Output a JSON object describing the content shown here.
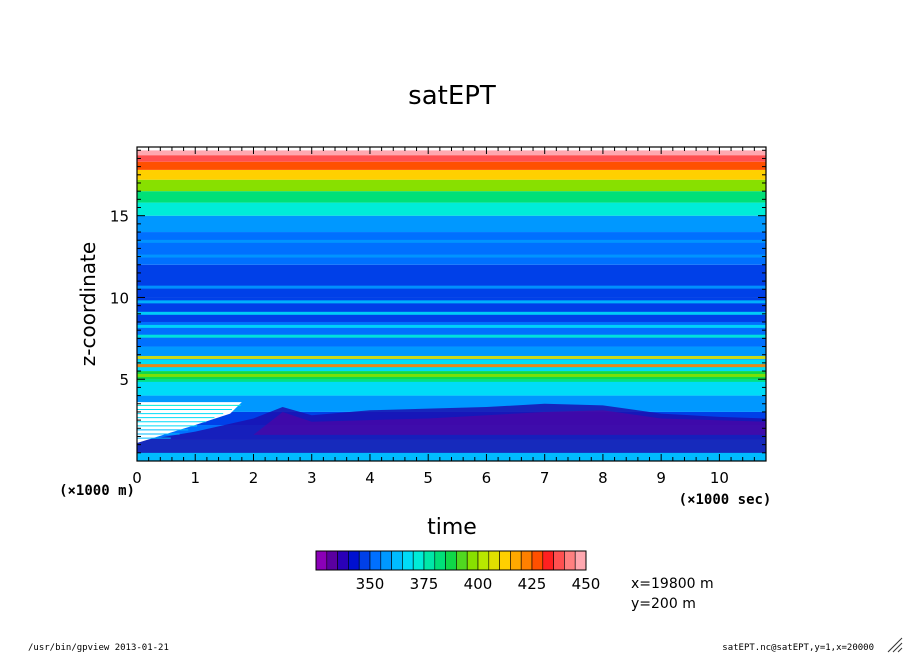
{
  "chart_data": {
    "type": "heatmap",
    "title": "satEPT",
    "xlabel": "time",
    "ylabel": "z-coordinate",
    "x_scale_note": "(×1000 sec)",
    "y_scale_note": "(×1000 m)",
    "xlim": [
      0,
      10.8
    ],
    "ylim": [
      0,
      19.2
    ],
    "x_ticks": [
      0,
      1,
      2,
      3,
      4,
      5,
      6,
      7,
      8,
      9,
      10
    ],
    "x_tick_labels": [
      "0",
      "1",
      "2",
      "3",
      "4",
      "5",
      "6",
      "7",
      "8",
      "9",
      "10"
    ],
    "y_ticks": [
      5,
      10,
      15
    ],
    "y_tick_labels": [
      "5",
      "10",
      "15"
    ],
    "colorbar": {
      "levels_min": 330,
      "levels_step": 5,
      "colors": [
        "#8b00b8",
        "#5a00a0",
        "#2a00b8",
        "#0010d0",
        "#0040e8",
        "#0070ff",
        "#0098ff",
        "#00bcff",
        "#00dcf8",
        "#00ecd8",
        "#00e8a8",
        "#00e078",
        "#10d848",
        "#50d820",
        "#88e000",
        "#b8e800",
        "#e0e000",
        "#ffd000",
        "#ffa800",
        "#ff8000",
        "#ff5000",
        "#ff2020",
        "#ff5050",
        "#ff8080",
        "#ffa8b0"
      ],
      "tick_values": [
        350,
        375,
        400,
        425,
        450
      ],
      "tick_labels": [
        "350",
        "375",
        "400",
        "425",
        "450"
      ]
    },
    "background_layers": [
      {
        "z_top": 1.3,
        "value": 369
      },
      {
        "z_top": 2.2,
        "value": 358
      },
      {
        "z_top": 3.0,
        "value": 352
      },
      {
        "z_top": 4.0,
        "value": 360
      },
      {
        "z_top": 5.0,
        "value": 372
      },
      {
        "z_top": 5.5,
        "value": 390
      },
      {
        "z_top": 6.2,
        "value": 374
      },
      {
        "z_top": 7.0,
        "value": 362
      },
      {
        "z_top": 8.5,
        "value": 358
      },
      {
        "z_top": 10.0,
        "value": 353
      },
      {
        "z_top": 12.0,
        "value": 351
      },
      {
        "z_top": 14.0,
        "value": 356
      },
      {
        "z_top": 15.0,
        "value": 364
      },
      {
        "z_top": 15.8,
        "value": 375
      },
      {
        "z_top": 16.5,
        "value": 388
      },
      {
        "z_top": 17.2,
        "value": 403
      },
      {
        "z_top": 17.8,
        "value": 418
      },
      {
        "z_top": 18.3,
        "value": 432
      },
      {
        "z_top": 18.7,
        "value": 443
      },
      {
        "z_top": 19.0,
        "value": 450
      }
    ],
    "thin_bands": [
      {
        "z": 5.8,
        "value": 425
      },
      {
        "z": 6.3,
        "value": 412
      },
      {
        "z": 5.2,
        "value": 400
      },
      {
        "z": 4.9,
        "value": 385
      },
      {
        "z": 7.6,
        "value": 378
      },
      {
        "z": 8.2,
        "value": 372
      },
      {
        "z": 9.0,
        "value": 370
      },
      {
        "z": 9.7,
        "value": 367
      },
      {
        "z": 10.6,
        "value": 364
      },
      {
        "z": 12.5,
        "value": 362
      },
      {
        "z": 13.4,
        "value": 360
      }
    ],
    "low_region": {
      "value": 338,
      "top_profile": [
        [
          0,
          1.2
        ],
        [
          1.0,
          1.8
        ],
        [
          2.0,
          2.6
        ],
        [
          2.5,
          3.3
        ],
        [
          3.0,
          2.8
        ],
        [
          4.0,
          3.1
        ],
        [
          5.0,
          3.2
        ],
        [
          6.0,
          3.3
        ],
        [
          7.0,
          3.5
        ],
        [
          8.0,
          3.4
        ],
        [
          9.0,
          2.9
        ],
        [
          10.0,
          2.7
        ],
        [
          10.8,
          2.6
        ]
      ],
      "bottom_z": 0.5
    },
    "white_region_profile": [
      [
        0,
        1.1
      ],
      [
        0,
        3.6
      ],
      [
        1.8,
        3.6
      ],
      [
        1.6,
        2.9
      ],
      [
        1.0,
        2.2
      ]
    ],
    "annotations": [
      "x=19800 m",
      "y=200 m"
    ]
  },
  "footer": {
    "left": "/usr/bin/gpview  2013-01-21",
    "right": "satEPT.nc@satEPT,y=1,x=20000"
  }
}
